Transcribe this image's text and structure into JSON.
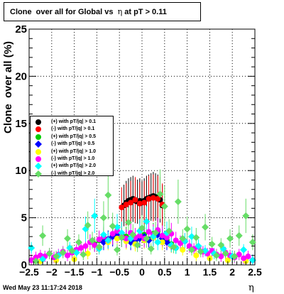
{
  "title": {
    "prefix": "Clone  over all for Global vs  ",
    "symbol": "η",
    "suffix": " at pT > 0.11"
  },
  "date_stamp": "Wed May 23 11:17:24 2018",
  "chart_data": {
    "type": "scatter",
    "title": "Clone  over all for Global vs  η at pT > 0.11",
    "xlabel": "η",
    "ylabel": "Clone  over all (%)",
    "xlim": [
      -2.5,
      2.5
    ],
    "ylim": [
      0,
      25
    ],
    "x_ticks": [
      "−2.5",
      "−2",
      "−1.5",
      "−1",
      "−0.5",
      "0",
      "0.5",
      "1",
      "1.5",
      "2",
      "2.5"
    ],
    "y_ticks": [
      "0",
      "5",
      "10",
      "15",
      "20",
      "25"
    ],
    "grid": true,
    "legend_placement": "middle-left",
    "series": [
      {
        "name": "(+) with pT/|q| > 0.1",
        "color": "#000000",
        "marker": "circle",
        "points": [
          [
            -0.4,
            6.3
          ],
          [
            -0.35,
            6.6
          ],
          [
            -0.3,
            6.8
          ],
          [
            -0.25,
            6.9
          ],
          [
            -0.2,
            7.0
          ],
          [
            -0.15,
            6.8
          ],
          [
            -0.1,
            6.7
          ],
          [
            -0.05,
            6.8
          ],
          [
            0.0,
            6.6
          ],
          [
            0.05,
            6.8
          ],
          [
            0.1,
            7.0
          ],
          [
            0.15,
            7.1
          ],
          [
            0.2,
            7.2
          ],
          [
            0.25,
            7.3
          ],
          [
            0.3,
            7.2
          ],
          [
            0.35,
            7.1
          ],
          [
            0.4,
            6.9
          ],
          [
            0.45,
            6.3
          ]
        ]
      },
      {
        "name": "(-) with pT/|q| > 0.1",
        "color": "#ff0000",
        "marker": "circle",
        "points": [
          [
            -0.45,
            6.1
          ],
          [
            -0.35,
            6.4
          ],
          [
            -0.25,
            6.6
          ],
          [
            -0.15,
            6.9
          ],
          [
            -0.05,
            6.5
          ],
          [
            0.05,
            6.6
          ],
          [
            0.15,
            7.0
          ],
          [
            0.25,
            7.1
          ],
          [
            0.35,
            7.0
          ],
          [
            0.45,
            6.4
          ]
        ]
      },
      {
        "name": "(+) with pT/|q| > 0.5",
        "color": "#00cc00",
        "marker": "circle",
        "points": [
          [
            -1.05,
            2.2
          ],
          [
            -0.95,
            2.6
          ],
          [
            -0.85,
            2.9
          ],
          [
            -0.75,
            2.7
          ],
          [
            -0.65,
            3.1
          ],
          [
            -0.55,
            3.5
          ],
          [
            -0.45,
            3.3
          ],
          [
            -0.35,
            3.0
          ],
          [
            -0.25,
            2.8
          ],
          [
            -0.15,
            2.5
          ],
          [
            -0.05,
            2.9
          ],
          [
            0.05,
            3.2
          ],
          [
            0.15,
            2.7
          ],
          [
            0.25,
            3.3
          ],
          [
            0.35,
            3.6
          ],
          [
            0.45,
            3.0
          ],
          [
            0.55,
            2.6
          ],
          [
            0.65,
            2.2
          ],
          [
            0.75,
            1.8
          ]
        ]
      },
      {
        "name": "(-) with pT/|q| > 0.5",
        "color": "#0000ff",
        "marker": "diamond",
        "points": [
          [
            -0.85,
            2.4
          ],
          [
            -0.75,
            2.7
          ],
          [
            -0.65,
            3.0
          ],
          [
            -0.55,
            3.2
          ],
          [
            -0.45,
            2.9
          ],
          [
            -0.35,
            2.7
          ],
          [
            -0.25,
            2.4
          ],
          [
            -0.15,
            2.6
          ],
          [
            -0.05,
            2.8
          ],
          [
            0.05,
            3.0
          ],
          [
            0.15,
            2.6
          ],
          [
            0.25,
            2.9
          ],
          [
            0.35,
            3.2
          ],
          [
            0.45,
            2.8
          ],
          [
            0.55,
            2.4
          ],
          [
            0.65,
            2.0
          ]
        ]
      },
      {
        "name": "(+) with pT/|q| > 1.0",
        "color": "#ffff00",
        "marker": "circle",
        "points": [
          [
            -2.25,
            0.4
          ],
          [
            -1.9,
            0.5
          ],
          [
            -1.5,
            0.6
          ],
          [
            -1.2,
            1.2
          ],
          [
            -0.95,
            1.8
          ],
          [
            -0.75,
            2.4
          ],
          [
            -0.55,
            2.8
          ],
          [
            -0.35,
            2.5
          ],
          [
            -0.15,
            2.2
          ],
          [
            0.05,
            2.6
          ],
          [
            0.25,
            2.9
          ],
          [
            0.45,
            2.4
          ],
          [
            0.65,
            2.0
          ],
          [
            0.9,
            1.6
          ],
          [
            1.2,
            1.0
          ],
          [
            1.5,
            0.7
          ],
          [
            1.9,
            0.5
          ],
          [
            2.3,
            0.4
          ]
        ]
      },
      {
        "name": "(-) with pT/|q| > 1.0",
        "color": "#ff00ff",
        "marker": "circle",
        "points": [
          [
            -2.45,
            0.5
          ],
          [
            -2.35,
            0.8
          ],
          [
            -2.25,
            1.0
          ],
          [
            -2.15,
            0.9
          ],
          [
            -2.05,
            1.2
          ],
          [
            -1.95,
            0.8
          ],
          [
            -1.85,
            1.1
          ],
          [
            -1.75,
            1.4
          ],
          [
            -1.65,
            1.0
          ],
          [
            -1.55,
            1.3
          ],
          [
            -1.45,
            1.6
          ],
          [
            -1.35,
            1.8
          ],
          [
            -1.25,
            2.0
          ],
          [
            -1.15,
            2.4
          ],
          [
            -1.05,
            2.1
          ],
          [
            -0.95,
            2.7
          ],
          [
            -0.85,
            3.0
          ],
          [
            -0.75,
            2.6
          ],
          [
            -0.65,
            3.3
          ],
          [
            -0.55,
            3.6
          ],
          [
            -0.45,
            3.0
          ],
          [
            -0.35,
            2.8
          ],
          [
            -0.25,
            3.4
          ],
          [
            -0.15,
            2.9
          ],
          [
            -0.05,
            3.1
          ],
          [
            0.05,
            2.8
          ],
          [
            0.15,
            3.5
          ],
          [
            0.25,
            3.2
          ],
          [
            0.35,
            3.7
          ],
          [
            0.45,
            3.1
          ],
          [
            0.55,
            2.9
          ],
          [
            0.65,
            3.3
          ],
          [
            0.75,
            2.6
          ],
          [
            0.85,
            2.3
          ],
          [
            0.95,
            2.5
          ],
          [
            1.05,
            2.0
          ],
          [
            1.15,
            1.7
          ],
          [
            1.25,
            1.9
          ],
          [
            1.35,
            1.4
          ],
          [
            1.45,
            1.2
          ],
          [
            1.55,
            1.5
          ],
          [
            1.65,
            1.1
          ],
          [
            1.75,
            0.9
          ],
          [
            1.85,
            1.3
          ],
          [
            1.95,
            1.0
          ],
          [
            2.05,
            0.8
          ],
          [
            2.15,
            1.1
          ],
          [
            2.25,
            0.7
          ],
          [
            2.35,
            0.9
          ],
          [
            2.45,
            0.5
          ]
        ]
      },
      {
        "name": "(+) with pT/|q| > 2.0",
        "color": "#00ffff",
        "marker": "diamond",
        "points": [
          [
            -2.45,
            1.8
          ],
          [
            -2.2,
            0.6
          ],
          [
            -1.85,
            1.0
          ],
          [
            -1.6,
            1.8
          ],
          [
            -1.45,
            1.3
          ],
          [
            -1.25,
            3.8
          ],
          [
            -1.05,
            5.2
          ],
          [
            -0.95,
            1.7
          ],
          [
            -0.85,
            3.2
          ],
          [
            -0.75,
            2.6
          ],
          [
            -0.55,
            4.0
          ],
          [
            -0.45,
            3.4
          ],
          [
            -0.25,
            2.8
          ],
          [
            -0.05,
            3.6
          ],
          [
            0.1,
            4.6
          ],
          [
            0.25,
            3.0
          ],
          [
            0.35,
            2.4
          ],
          [
            0.55,
            3.4
          ],
          [
            0.65,
            2.1
          ],
          [
            0.75,
            1.8
          ],
          [
            0.95,
            2.5
          ],
          [
            1.1,
            3.0
          ],
          [
            1.25,
            2.0
          ],
          [
            1.4,
            1.5
          ],
          [
            1.6,
            1.2
          ],
          [
            1.8,
            1.7
          ],
          [
            2.0,
            0.9
          ],
          [
            2.25,
            1.6
          ],
          [
            2.45,
            0.5
          ]
        ]
      },
      {
        "name": "(-) with pT/|q| > 2.0",
        "color": "#66dd66",
        "marker": "diamond",
        "points": [
          [
            -2.35,
            0.4
          ],
          [
            -2.2,
            3.1
          ],
          [
            -2.05,
            1.2
          ],
          [
            -1.9,
            0.9
          ],
          [
            -1.75,
            1.3
          ],
          [
            -1.65,
            2.8
          ],
          [
            -1.55,
            1.5
          ],
          [
            -1.4,
            2.4
          ],
          [
            -1.3,
            1.1
          ],
          [
            -1.2,
            4.2
          ],
          [
            -1.1,
            2.6
          ],
          [
            -0.95,
            1.9
          ],
          [
            -0.85,
            5.0
          ],
          [
            -0.75,
            7.4
          ],
          [
            -0.65,
            4.1
          ],
          [
            -0.55,
            1.6
          ],
          [
            -0.45,
            2.9
          ],
          [
            -0.3,
            4.5
          ],
          [
            -0.2,
            3.2
          ],
          [
            -0.1,
            2.1
          ],
          [
            0.0,
            3.9
          ],
          [
            0.1,
            2.8
          ],
          [
            0.2,
            1.7
          ],
          [
            0.3,
            3.4
          ],
          [
            0.4,
            7.5
          ],
          [
            0.5,
            6.2
          ],
          [
            0.6,
            3.6
          ],
          [
            0.7,
            1.9
          ],
          [
            0.8,
            6.7
          ],
          [
            0.9,
            2.8
          ],
          [
            1.0,
            3.8
          ],
          [
            1.1,
            1.6
          ],
          [
            1.2,
            2.9
          ],
          [
            1.3,
            1.4
          ],
          [
            1.4,
            4.0
          ],
          [
            1.55,
            2.2
          ],
          [
            1.65,
            1.0
          ],
          [
            1.75,
            2.1
          ],
          [
            1.85,
            1.2
          ],
          [
            1.95,
            2.8
          ],
          [
            2.05,
            0.9
          ],
          [
            2.15,
            3.1
          ],
          [
            2.3,
            5.2
          ],
          [
            2.45,
            2.4
          ]
        ]
      }
    ]
  }
}
